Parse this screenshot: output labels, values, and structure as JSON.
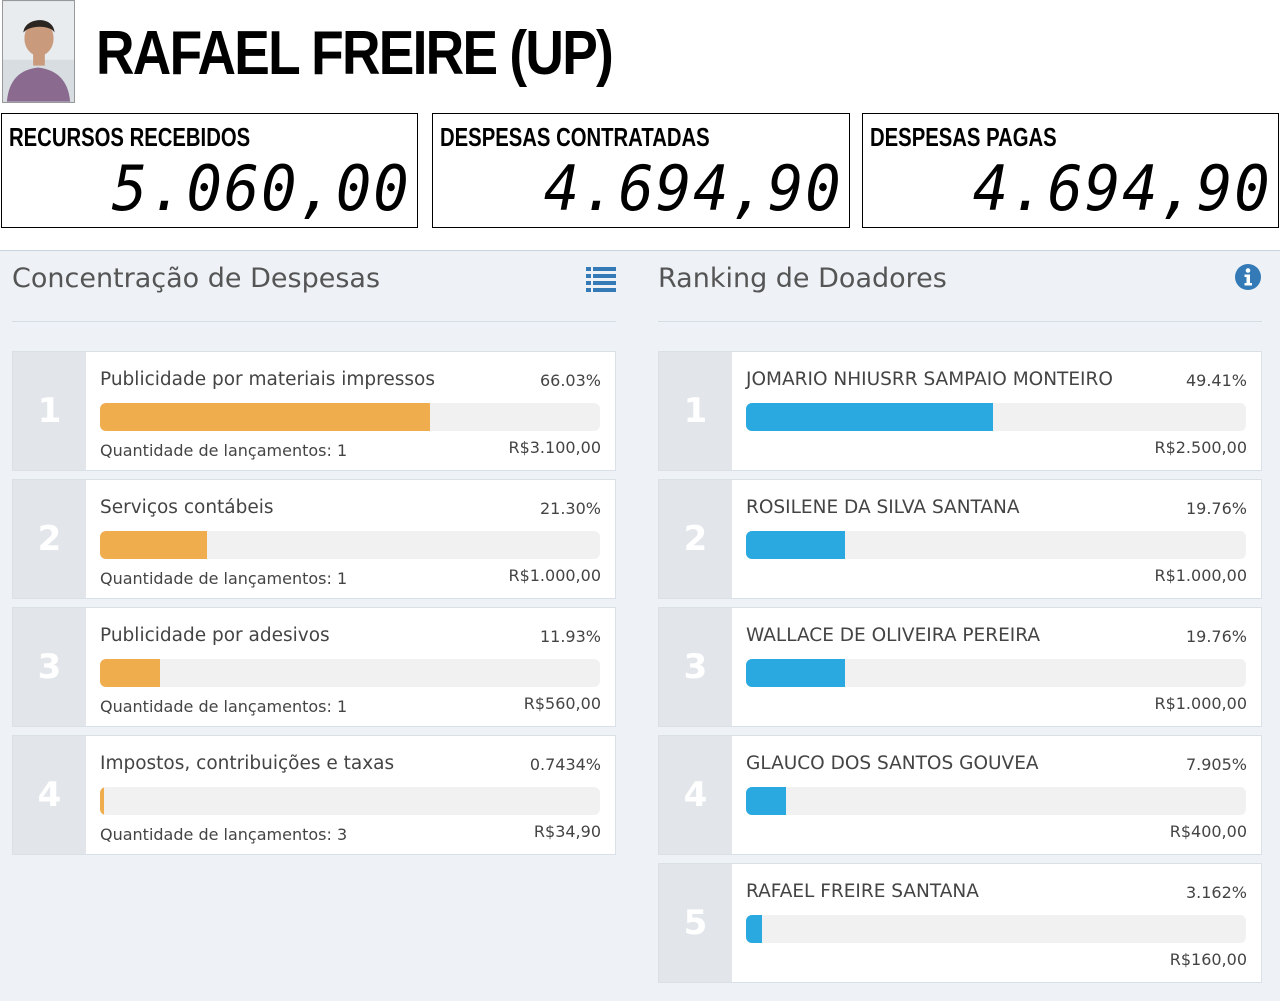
{
  "candidate": {
    "name": "RAFAEL FREIRE (UP)"
  },
  "stats": [
    {
      "label": "RECURSOS RECEBIDOS",
      "value": "5.060,00"
    },
    {
      "label": "DESPESAS CONTRATADAS",
      "value": "4.694,90"
    },
    {
      "label": "DESPESAS PAGAS",
      "value": "4.694,90"
    }
  ],
  "expenses": {
    "title": "Concentração de Despesas",
    "icon": "list-icon",
    "bar_color": "#f0ad4e",
    "items": [
      {
        "rank": "1",
        "label": "Publicidade por materiais impressos",
        "percent": "66.03%",
        "fraction": 0.6603,
        "count": "Quantidade de lançamentos: 1",
        "amount": "R$3.100,00"
      },
      {
        "rank": "2",
        "label": "Serviços contábeis",
        "percent": "21.30%",
        "fraction": 0.213,
        "count": "Quantidade de lançamentos: 1",
        "amount": "R$1.000,00"
      },
      {
        "rank": "3",
        "label": "Publicidade por adesivos",
        "percent": "11.93%",
        "fraction": 0.1193,
        "count": "Quantidade de lançamentos: 1",
        "amount": "R$560,00"
      },
      {
        "rank": "4",
        "label": "Impostos, contribuições e taxas",
        "percent": "0.7434%",
        "fraction": 0.007434,
        "count": "Quantidade de lançamentos: 3",
        "amount": "R$34,90"
      }
    ]
  },
  "donors": {
    "title": "Ranking de Doadores",
    "icon": "info-icon",
    "bar_color": "#2aa9e0",
    "items": [
      {
        "rank": "1",
        "label": "JOMARIO NHIUSRR SAMPAIO MONTEIRO",
        "percent": "49.41%",
        "fraction": 0.4941,
        "amount": "R$2.500,00"
      },
      {
        "rank": "2",
        "label": "ROSILENE DA SILVA SANTANA",
        "percent": "19.76%",
        "fraction": 0.1976,
        "amount": "R$1.000,00"
      },
      {
        "rank": "3",
        "label": "WALLACE DE OLIVEIRA PEREIRA",
        "percent": "19.76%",
        "fraction": 0.1976,
        "amount": "R$1.000,00"
      },
      {
        "rank": "4",
        "label": "GLAUCO DOS SANTOS GOUVEA",
        "percent": "7.905%",
        "fraction": 0.07905,
        "amount": "R$400,00"
      },
      {
        "rank": "5",
        "label": "RAFAEL FREIRE SANTANA",
        "percent": "3.162%",
        "fraction": 0.03162,
        "amount": "R$160,00"
      }
    ]
  }
}
